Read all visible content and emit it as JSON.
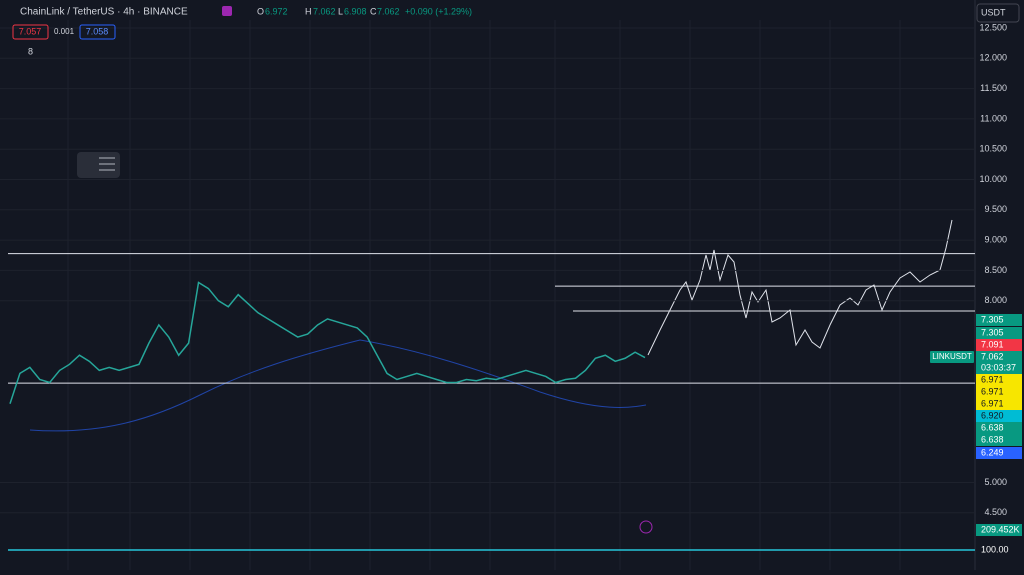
{
  "header": {
    "symbol": "ChainLink / TetherUS · 4h · BINANCE",
    "o_label": "O",
    "o": "6.972",
    "h_label": "H",
    "h": "7.062",
    "l_label": "L",
    "l": "6.908",
    "c_label": "C",
    "c": "7.062",
    "change": "+0.090 (+1.29%)",
    "bid": "7.057",
    "spread": "0.001",
    "ask": "7.058",
    "indicators": "8",
    "currency": "USDT"
  },
  "chart_data": {
    "type": "line",
    "ylim": [
      4.3,
      12.7
    ],
    "yticks": [
      {
        "value": 12.5,
        "label": "12.500"
      },
      {
        "value": 12,
        "label": "12.000"
      },
      {
        "value": 11.5,
        "label": "11.500"
      },
      {
        "value": 11,
        "label": "11.000"
      },
      {
        "value": 10.5,
        "label": "10.500"
      },
      {
        "value": 10,
        "label": "10.000"
      },
      {
        "value": 9.5,
        "label": "9.500"
      },
      {
        "value": 9,
        "label": "9.000"
      },
      {
        "value": 8.5,
        "label": "8.500"
      },
      {
        "value": 8,
        "label": "8.000"
      },
      {
        "value": 5,
        "label": "5.000"
      },
      {
        "value": 4.5,
        "label": "4.500"
      }
    ],
    "grid": true,
    "series": [
      {
        "color": "#26a69a",
        "values": [
          6.3,
          6.8,
          6.9,
          6.7,
          6.65,
          6.85,
          6.95,
          7.1,
          7.0,
          6.85,
          6.9,
          6.85,
          6.9,
          6.95,
          7.3,
          7.6,
          7.4,
          7.1,
          7.3,
          8.3,
          8.2,
          8.0,
          7.9,
          8.1,
          7.95,
          7.8,
          7.7,
          7.6,
          7.5,
          7.4,
          7.45,
          7.6,
          7.7,
          7.65,
          7.6,
          7.55,
          7.4,
          7.1,
          6.8,
          6.7,
          6.75,
          6.8,
          6.75,
          6.7,
          6.65,
          6.65,
          6.7,
          6.68,
          6.72,
          6.7,
          6.75,
          6.8,
          6.85,
          6.8,
          6.75,
          6.65,
          6.7,
          6.72,
          6.85,
          7.05,
          7.1,
          7.0,
          7.05,
          7.15,
          7.062
        ]
      }
    ],
    "levels": [
      8.776,
      8.24,
      7.83,
      6.64
    ]
  },
  "price_labels": [
    {
      "text": "7.305",
      "color": "#089981"
    },
    {
      "text": "7.305",
      "color": "#089981"
    },
    {
      "text": "7.091",
      "color": "#f23645"
    },
    {
      "text": "7.062",
      "color": "#089981"
    },
    {
      "text": "03:03:37",
      "color": "#089981"
    },
    {
      "text": "6.971",
      "color": "#f7e600"
    },
    {
      "text": "6.971",
      "color": "#f7e600"
    },
    {
      "text": "6.971",
      "color": "#f7e600"
    },
    {
      "text": "6.920",
      "color": "#00bcd4"
    },
    {
      "text": "6.638",
      "color": "#089981"
    },
    {
      "text": "6.638",
      "color": "#089981"
    },
    {
      "text": "6.249",
      "color": "#2962ff"
    },
    {
      "text": "209.452K",
      "color": "#089981"
    },
    {
      "text": "100.00",
      "color": "#131722"
    }
  ],
  "symbol_tag": "LINKUSDT"
}
